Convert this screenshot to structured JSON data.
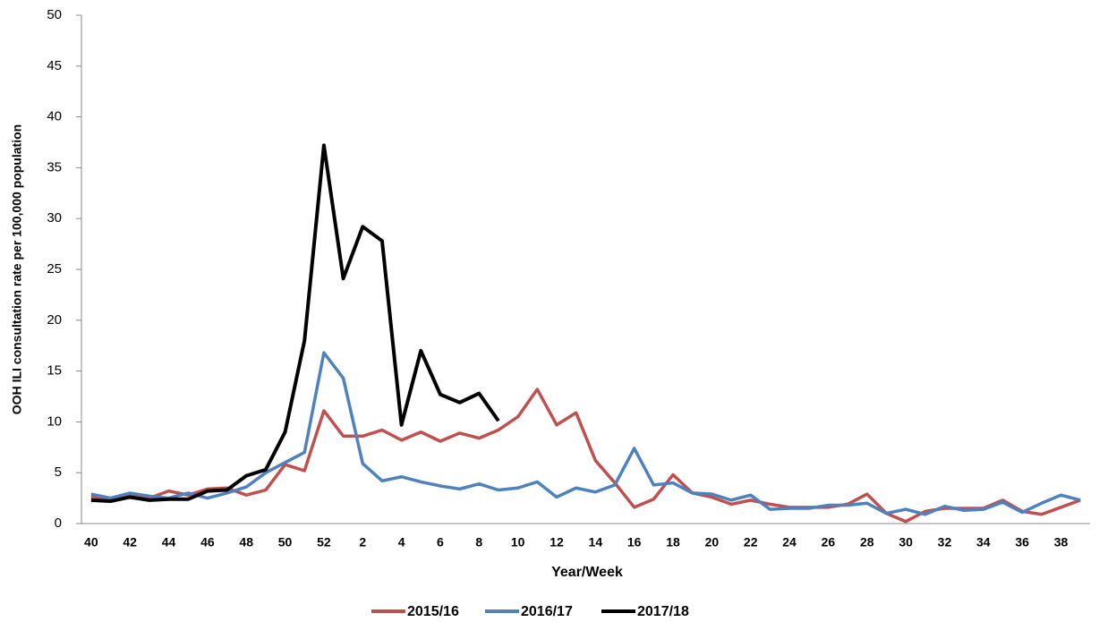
{
  "chart_data": {
    "type": "line",
    "y_label": "OOH ILI consultation rate per 100,000 population",
    "x_label": "Year/Week",
    "categories": [
      "40",
      null,
      "42",
      null,
      "44",
      null,
      "46",
      null,
      "48",
      null,
      "50",
      null,
      "52",
      null,
      "2",
      null,
      "4",
      null,
      "6",
      null,
      "8",
      null,
      "10",
      null,
      "12",
      null,
      "14",
      null,
      "16",
      null,
      "18",
      null,
      "20",
      null,
      "22",
      null,
      "24",
      null,
      "26",
      null,
      "28",
      null,
      "30",
      null,
      "32",
      null,
      "34",
      null,
      "36",
      null,
      "38",
      null
    ],
    "series": [
      {
        "name": "2015/16",
        "color": "#c0504d",
        "values": [
          2.6,
          2.5,
          2.8,
          2.5,
          3.2,
          2.8,
          3.4,
          3.5,
          2.8,
          3.3,
          5.8,
          5.2,
          11.1,
          8.6,
          8.6,
          9.2,
          8.2,
          9.0,
          8.1,
          8.9,
          8.4,
          9.2,
          10.5,
          13.2,
          9.7,
          10.9,
          6.2,
          4.0,
          1.6,
          2.4,
          4.8,
          3.0,
          2.6,
          1.9,
          2.3,
          1.9,
          1.6,
          1.6,
          1.6,
          1.9,
          2.9,
          1.0,
          0.2,
          1.2,
          1.5,
          1.5,
          1.5,
          2.3,
          1.2,
          0.9,
          1.6,
          2.3
        ]
      },
      {
        "name": "2016/17",
        "color": "#4f81bd",
        "values": [
          2.9,
          2.5,
          3.0,
          2.7,
          2.5,
          3.0,
          2.5,
          3.0,
          3.6,
          5.0,
          6.0,
          7.0,
          16.8,
          14.3,
          5.9,
          4.2,
          4.6,
          4.1,
          3.7,
          3.4,
          3.9,
          3.3,
          3.5,
          4.1,
          2.6,
          3.5,
          3.1,
          3.8,
          7.4,
          3.8,
          4.0,
          3.0,
          2.9,
          2.3,
          2.8,
          1.4,
          1.5,
          1.5,
          1.8,
          1.8,
          2.0,
          1.0,
          1.4,
          0.9,
          1.7,
          1.3,
          1.4,
          2.1,
          1.1,
          2.0,
          2.8,
          2.3
        ]
      },
      {
        "name": "2017/18",
        "color": "#000000",
        "values": [
          2.3,
          2.2,
          2.6,
          2.3,
          2.4,
          2.4,
          3.2,
          3.3,
          4.7,
          5.3,
          9.0,
          18.0,
          37.2,
          24.1,
          29.2,
          27.8,
          9.7,
          17.0,
          12.7,
          11.9,
          12.8,
          10.1,
          null,
          null,
          null,
          null,
          null,
          null,
          null,
          null,
          null,
          null,
          null,
          null,
          null,
          null,
          null,
          null,
          null,
          null,
          null,
          null,
          null,
          null,
          null,
          null,
          null,
          null,
          null,
          null,
          null,
          null
        ]
      }
    ],
    "ylim": [
      0,
      50
    ],
    "yticks": [
      0,
      5,
      10,
      15,
      20,
      25,
      30,
      35,
      40,
      45,
      50
    ],
    "grid": false,
    "legend": "bottom"
  }
}
